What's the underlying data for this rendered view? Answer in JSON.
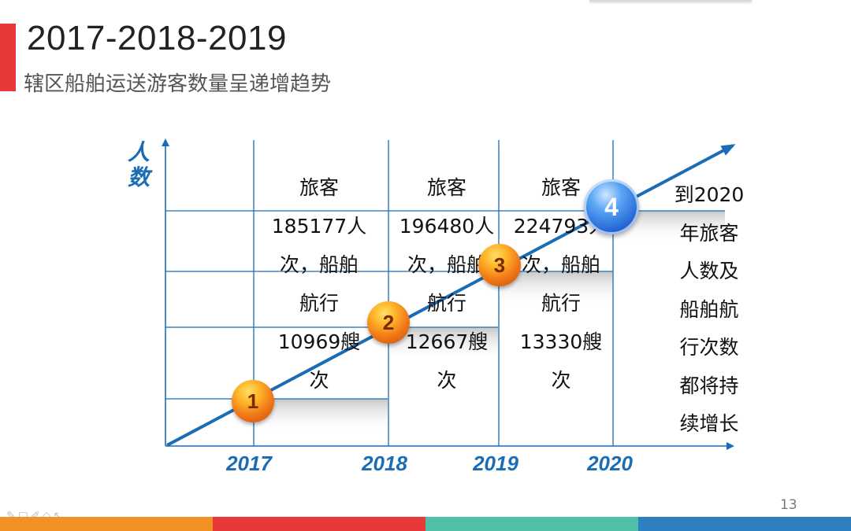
{
  "header": {
    "title": "2017-2018-2019",
    "subtitle": "辖区船舶运送游客数量呈递增趋势"
  },
  "y_axis": {
    "label_lines": [
      "人",
      "数"
    ]
  },
  "years": [
    "2017",
    "2018",
    "2019",
    "2020"
  ],
  "milestones": [
    "1",
    "2",
    "3",
    "4"
  ],
  "columns": [
    {
      "lines": [
        "旅客",
        "185177人",
        "次，船舶",
        "航行",
        "10969艘",
        "次"
      ]
    },
    {
      "lines": [
        "旅客",
        "196480人",
        "次，船舶",
        "航行",
        "12667艘",
        "次"
      ]
    },
    {
      "lines": [
        "旅客",
        "224793人",
        "次，船舶",
        "航行",
        "13330艘",
        "次"
      ]
    }
  ],
  "outlook": {
    "lines": [
      "到2020",
      "年旅客",
      "人数及",
      "船舶航",
      "行次数",
      "都将持",
      "续增长"
    ]
  },
  "page_number": "13",
  "colors": {
    "accent_red": "#e8383a",
    "axis_blue": "#1a6db5",
    "marker_orange": "#f07818",
    "marker_blue": "#2466d6",
    "footer": [
      "#f39224",
      "#e8383a",
      "#4fbfa8",
      "#2e7fbf"
    ]
  },
  "icons": [
    "pen-icon",
    "square-icon",
    "ink-icon",
    "eraser-icon",
    "pointer-icon"
  ]
}
